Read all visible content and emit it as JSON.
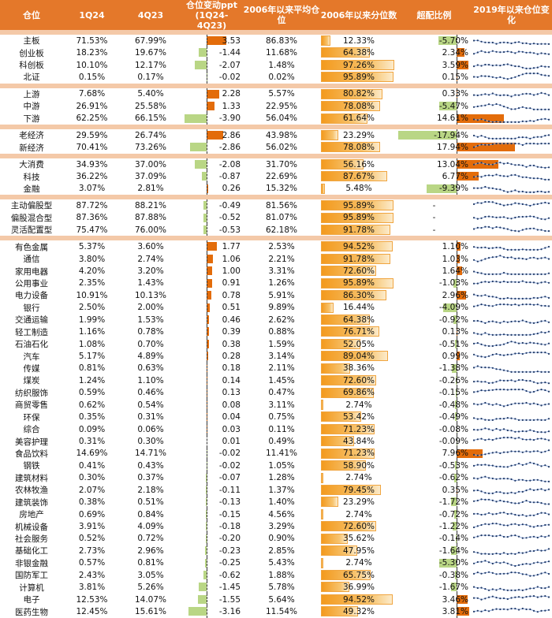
{
  "chart_data": {
    "type": "table",
    "headers": {
      "name": "仓位",
      "q1": "1Q24",
      "q4": "4Q23",
      "change_line1": "仓位变动ppt",
      "change_line2": "(1Q24-4Q23)",
      "avg": "2006年以来平均仓位",
      "percentile": "2006年以来分位数",
      "overweight": "超配比例",
      "trend": "2019年以来仓位变化"
    },
    "groups": [
      {
        "rows": [
          {
            "name": "主板",
            "q1": "71.53%",
            "q4": "67.99%",
            "change": 3.53,
            "change_label": "3.53",
            "avg": "86.83%",
            "percentile": 12.33,
            "percentile_label": "12.33%",
            "overweight": -5.7,
            "overweight_label": "-5.70%"
          },
          {
            "name": "创业板",
            "q1": "18.23%",
            "q4": "19.67%",
            "change": -1.44,
            "change_label": "-1.44",
            "avg": "11.68%",
            "percentile": 64.38,
            "percentile_label": "64.38%",
            "overweight": 2.34,
            "overweight_label": "2.34%"
          },
          {
            "name": "科创板",
            "q1": "10.10%",
            "q4": "12.17%",
            "change": -2.07,
            "change_label": "-2.07",
            "avg": "1.48%",
            "percentile": 97.26,
            "percentile_label": "97.26%",
            "overweight": 3.59,
            "overweight_label": "3.59%"
          },
          {
            "name": "北证",
            "q1": "0.15%",
            "q4": "0.17%",
            "change": -0.02,
            "change_label": "-0.02",
            "avg": "0.02%",
            "percentile": 95.89,
            "percentile_label": "95.89%",
            "overweight": 0.15,
            "overweight_label": "0.15%"
          }
        ]
      },
      {
        "rows": [
          {
            "name": "上游",
            "q1": "7.68%",
            "q4": "5.40%",
            "change": 2.28,
            "change_label": "2.28",
            "avg": "5.57%",
            "percentile": 80.82,
            "percentile_label": "80.82%",
            "overweight": 0.33,
            "overweight_label": "0.33%"
          },
          {
            "name": "中游",
            "q1": "26.91%",
            "q4": "25.58%",
            "change": 1.33,
            "change_label": "1.33",
            "avg": "22.95%",
            "percentile": 78.08,
            "percentile_label": "78.08%",
            "overweight": -5.47,
            "overweight_label": "-5.47%"
          },
          {
            "name": "下游",
            "q1": "62.25%",
            "q4": "66.15%",
            "change": -3.9,
            "change_label": "-3.90",
            "avg": "56.04%",
            "percentile": 61.64,
            "percentile_label": "61.64%",
            "overweight": 14.61,
            "overweight_label": "14.61%"
          }
        ]
      },
      {
        "rows": [
          {
            "name": "老经济",
            "q1": "29.59%",
            "q4": "26.74%",
            "change": 2.86,
            "change_label": "2.86",
            "avg": "43.98%",
            "percentile": 23.29,
            "percentile_label": "23.29%",
            "overweight": -17.94,
            "overweight_label": "-17.94%"
          },
          {
            "name": "新经济",
            "q1": "70.41%",
            "q4": "73.26%",
            "change": -2.86,
            "change_label": "-2.86",
            "avg": "56.02%",
            "percentile": 78.08,
            "percentile_label": "78.08%",
            "overweight": 17.94,
            "overweight_label": "17.94%"
          }
        ]
      },
      {
        "rows": [
          {
            "name": "大消费",
            "q1": "34.93%",
            "q4": "37.00%",
            "change": -2.08,
            "change_label": "-2.08",
            "avg": "31.70%",
            "percentile": 56.16,
            "percentile_label": "56.16%",
            "overweight": 13.04,
            "overweight_label": "13.04%"
          },
          {
            "name": "科技",
            "q1": "36.22%",
            "q4": "37.09%",
            "change": -0.87,
            "change_label": "-0.87",
            "avg": "22.69%",
            "percentile": 87.67,
            "percentile_label": "87.67%",
            "overweight": 6.77,
            "overweight_label": "6.77%"
          },
          {
            "name": "金融",
            "q1": "3.07%",
            "q4": "2.81%",
            "change": 0.26,
            "change_label": "0.26",
            "avg": "15.32%",
            "percentile": 5.48,
            "percentile_label": "5.48%",
            "overweight": -9.39,
            "overweight_label": "-9.39%"
          }
        ]
      },
      {
        "rows": [
          {
            "name": "主动偏股型",
            "q1": "87.72%",
            "q4": "88.21%",
            "change": -0.49,
            "change_label": "-0.49",
            "avg": "81.56%",
            "percentile": 95.89,
            "percentile_label": "95.89%",
            "overweight": null,
            "overweight_label": "-"
          },
          {
            "name": "偏股混合型",
            "q1": "87.36%",
            "q4": "87.88%",
            "change": -0.52,
            "change_label": "-0.52",
            "avg": "81.07%",
            "percentile": 95.89,
            "percentile_label": "95.89%",
            "overweight": null,
            "overweight_label": "-"
          },
          {
            "name": "灵活配置型",
            "q1": "75.47%",
            "q4": "76.00%",
            "change": -0.53,
            "change_label": "-0.53",
            "avg": "62.18%",
            "percentile": 91.78,
            "percentile_label": "91.78%",
            "overweight": null,
            "overweight_label": "-"
          }
        ]
      },
      {
        "rows": [
          {
            "name": "有色金属",
            "q1": "5.37%",
            "q4": "3.60%",
            "change": 1.77,
            "change_label": "1.77",
            "avg": "2.53%",
            "percentile": 94.52,
            "percentile_label": "94.52%",
            "overweight": 1.1,
            "overweight_label": "1.10%"
          },
          {
            "name": "通信",
            "q1": "3.80%",
            "q4": "2.74%",
            "change": 1.06,
            "change_label": "1.06",
            "avg": "2.21%",
            "percentile": 91.78,
            "percentile_label": "91.78%",
            "overweight": 1.03,
            "overweight_label": "1.03%"
          },
          {
            "name": "家用电器",
            "q1": "4.20%",
            "q4": "3.20%",
            "change": 1.0,
            "change_label": "1.00",
            "avg": "3.31%",
            "percentile": 72.6,
            "percentile_label": "72.60%",
            "overweight": 1.64,
            "overweight_label": "1.64%"
          },
          {
            "name": "公用事业",
            "q1": "2.35%",
            "q4": "1.43%",
            "change": 0.91,
            "change_label": "0.91",
            "avg": "1.26%",
            "percentile": 95.89,
            "percentile_label": "95.89%",
            "overweight": -1.03,
            "overweight_label": "-1.03%"
          },
          {
            "name": "电力设备",
            "q1": "10.91%",
            "q4": "10.13%",
            "change": 0.78,
            "change_label": "0.78",
            "avg": "5.91%",
            "percentile": 86.3,
            "percentile_label": "86.30%",
            "overweight": 2.96,
            "overweight_label": "2.96%"
          },
          {
            "name": "银行",
            "q1": "2.50%",
            "q4": "2.00%",
            "change": 0.51,
            "change_label": "0.51",
            "avg": "9.89%",
            "percentile": 16.44,
            "percentile_label": "16.44%",
            "overweight": -4.09,
            "overweight_label": "-4.09%"
          },
          {
            "name": "交通运输",
            "q1": "1.99%",
            "q4": "1.53%",
            "change": 0.46,
            "change_label": "0.46",
            "avg": "2.62%",
            "percentile": 64.38,
            "percentile_label": "64.38%",
            "overweight": -0.92,
            "overweight_label": "-0.92%"
          },
          {
            "name": "轻工制造",
            "q1": "1.16%",
            "q4": "0.78%",
            "change": 0.39,
            "change_label": "0.39",
            "avg": "0.88%",
            "percentile": 76.71,
            "percentile_label": "76.71%",
            "overweight": 0.13,
            "overweight_label": "0.13%"
          },
          {
            "name": "石油石化",
            "q1": "1.08%",
            "q4": "0.70%",
            "change": 0.38,
            "change_label": "0.38",
            "avg": "1.59%",
            "percentile": 52.05,
            "percentile_label": "52.05%",
            "overweight": -0.51,
            "overweight_label": "-0.51%"
          },
          {
            "name": "汽车",
            "q1": "5.17%",
            "q4": "4.89%",
            "change": 0.28,
            "change_label": "0.28",
            "avg": "3.14%",
            "percentile": 89.04,
            "percentile_label": "89.04%",
            "overweight": 0.99,
            "overweight_label": "0.99%"
          },
          {
            "name": "传媒",
            "q1": "0.81%",
            "q4": "0.63%",
            "change": 0.18,
            "change_label": "0.18",
            "avg": "2.11%",
            "percentile": 38.36,
            "percentile_label": "38.36%",
            "overweight": -1.38,
            "overweight_label": "-1.38%"
          },
          {
            "name": "煤炭",
            "q1": "1.24%",
            "q4": "1.10%",
            "change": 0.14,
            "change_label": "0.14",
            "avg": "1.45%",
            "percentile": 72.6,
            "percentile_label": "72.60%",
            "overweight": -0.26,
            "overweight_label": "-0.26%"
          },
          {
            "name": "纺织服饰",
            "q1": "0.59%",
            "q4": "0.46%",
            "change": 0.13,
            "change_label": "0.13",
            "avg": "0.47%",
            "percentile": 69.86,
            "percentile_label": "69.86%",
            "overweight": -0.15,
            "overweight_label": "-0.15%"
          },
          {
            "name": "商贸零售",
            "q1": "0.62%",
            "q4": "0.54%",
            "change": 0.08,
            "change_label": "0.08",
            "avg": "3.11%",
            "percentile": 2.74,
            "percentile_label": "2.74%",
            "overweight": -0.48,
            "overweight_label": "-0.48%"
          },
          {
            "name": "环保",
            "q1": "0.35%",
            "q4": "0.31%",
            "change": 0.04,
            "change_label": "0.04",
            "avg": "0.75%",
            "percentile": 53.42,
            "percentile_label": "53.42%",
            "overweight": -0.49,
            "overweight_label": "-0.49%"
          },
          {
            "name": "综合",
            "q1": "0.09%",
            "q4": "0.06%",
            "change": 0.03,
            "change_label": "0.03",
            "avg": "0.11%",
            "percentile": 71.23,
            "percentile_label": "71.23%",
            "overweight": -0.08,
            "overweight_label": "-0.08%"
          },
          {
            "name": "美容护理",
            "q1": "0.31%",
            "q4": "0.30%",
            "change": 0.01,
            "change_label": "0.01",
            "avg": "0.49%",
            "percentile": 43.84,
            "percentile_label": "43.84%",
            "overweight": -0.09,
            "overweight_label": "-0.09%"
          },
          {
            "name": "食品饮料",
            "q1": "14.69%",
            "q4": "14.71%",
            "change": -0.02,
            "change_label": "-0.02",
            "avg": "11.41%",
            "percentile": 71.23,
            "percentile_label": "71.23%",
            "overweight": 7.96,
            "overweight_label": "7.96%"
          },
          {
            "name": "钢铁",
            "q1": "0.41%",
            "q4": "0.43%",
            "change": -0.02,
            "change_label": "-0.02",
            "avg": "1.05%",
            "percentile": 58.9,
            "percentile_label": "58.90%",
            "overweight": -0.53,
            "overweight_label": "-0.53%"
          },
          {
            "name": "建筑材料",
            "q1": "0.30%",
            "q4": "0.37%",
            "change": -0.07,
            "change_label": "-0.07",
            "avg": "1.28%",
            "percentile": 2.74,
            "percentile_label": "2.74%",
            "overweight": -0.62,
            "overweight_label": "-0.62%"
          },
          {
            "name": "农林牧渔",
            "q1": "2.07%",
            "q4": "2.18%",
            "change": -0.11,
            "change_label": "-0.11",
            "avg": "1.37%",
            "percentile": 79.45,
            "percentile_label": "79.45%",
            "overweight": 0.35,
            "overweight_label": "0.35%"
          },
          {
            "name": "建筑装饰",
            "q1": "0.38%",
            "q4": "0.51%",
            "change": -0.13,
            "change_label": "-0.13",
            "avg": "1.40%",
            "percentile": 23.29,
            "percentile_label": "23.29%",
            "overweight": -1.72,
            "overweight_label": "-1.72%"
          },
          {
            "name": "房地产",
            "q1": "0.69%",
            "q4": "0.84%",
            "change": -0.15,
            "change_label": "-0.15",
            "avg": "4.56%",
            "percentile": 2.74,
            "percentile_label": "2.74%",
            "overweight": -0.72,
            "overweight_label": "-0.72%"
          },
          {
            "name": "机械设备",
            "q1": "3.91%",
            "q4": "4.09%",
            "change": -0.18,
            "change_label": "-0.18",
            "avg": "3.29%",
            "percentile": 72.6,
            "percentile_label": "72.60%",
            "overweight": -1.22,
            "overweight_label": "-1.22%"
          },
          {
            "name": "社会服务",
            "q1": "0.52%",
            "q4": "0.72%",
            "change": -0.2,
            "change_label": "-0.20",
            "avg": "0.90%",
            "percentile": 35.62,
            "percentile_label": "35.62%",
            "overweight": -0.14,
            "overweight_label": "-0.14%"
          },
          {
            "name": "基础化工",
            "q1": "2.73%",
            "q4": "2.96%",
            "change": -0.23,
            "change_label": "-0.23",
            "avg": "2.85%",
            "percentile": 47.95,
            "percentile_label": "47.95%",
            "overweight": -1.64,
            "overweight_label": "-1.64%"
          },
          {
            "name": "非银金融",
            "q1": "0.57%",
            "q4": "0.81%",
            "change": -0.25,
            "change_label": "-0.25",
            "avg": "5.43%",
            "percentile": 2.74,
            "percentile_label": "2.74%",
            "overweight": -5.3,
            "overweight_label": "-5.30%"
          },
          {
            "name": "国防军工",
            "q1": "2.43%",
            "q4": "3.05%",
            "change": -0.62,
            "change_label": "-0.62",
            "avg": "1.88%",
            "percentile": 65.75,
            "percentile_label": "65.75%",
            "overweight": -0.38,
            "overweight_label": "-0.38%"
          },
          {
            "name": "计算机",
            "q1": "3.81%",
            "q4": "5.26%",
            "change": -1.45,
            "change_label": "-1.45",
            "avg": "5.78%",
            "percentile": 36.99,
            "percentile_label": "36.99%",
            "overweight": -1.67,
            "overweight_label": "-1.67%"
          },
          {
            "name": "电子",
            "q1": "12.53%",
            "q4": "14.07%",
            "change": -1.55,
            "change_label": "-1.55",
            "avg": "5.64%",
            "percentile": 94.52,
            "percentile_label": "94.52%",
            "overweight": 3.46,
            "overweight_label": "3.46%"
          },
          {
            "name": "医药生物",
            "q1": "12.45%",
            "q4": "15.61%",
            "change": -3.16,
            "change_label": "-3.16",
            "avg": "11.54%",
            "percentile": 49.32,
            "percentile_label": "49.32%",
            "overweight": 3.81,
            "overweight_label": "3.81%"
          }
        ]
      }
    ],
    "axes": {
      "change_range": [
        -4,
        4
      ],
      "overweight_range": [
        -18,
        18
      ],
      "percentile_range": [
        0,
        100
      ]
    },
    "colors": {
      "header": "#E4782A",
      "separator": "#F4C9A8",
      "positive": "#E36C0A",
      "negative": "#B9D685",
      "spark_line": "#8FAADC",
      "spark_marker": "#1F3864"
    }
  }
}
